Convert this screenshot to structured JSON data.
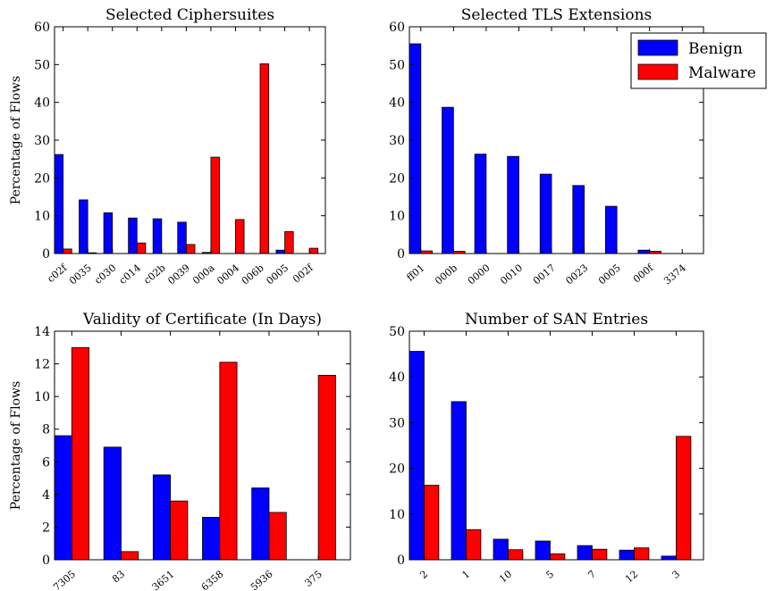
{
  "colors": {
    "benign": "#0000ff",
    "malware": "#ff0000"
  },
  "legend": {
    "benign_label": "Benign",
    "malware_label": "Malware",
    "placement": "upper-right"
  },
  "chart_data": [
    {
      "type": "bar",
      "title": "Selected Ciphersuites",
      "ylabel": "Percentage of Flows",
      "xlabel": "",
      "ylim": [
        0,
        60
      ],
      "yticks": [
        0,
        10,
        20,
        30,
        40,
        50,
        60
      ],
      "categories": [
        "c02f",
        "0035",
        "c030",
        "c014",
        "c02b",
        "0039",
        "000a",
        "0004",
        "006b",
        "0005",
        "002f"
      ],
      "series": [
        {
          "name": "Benign",
          "values": [
            26.2,
            14.2,
            10.8,
            9.4,
            9.2,
            8.3,
            0.3,
            0,
            0,
            0.9,
            0
          ]
        },
        {
          "name": "Malware",
          "values": [
            1.2,
            0.2,
            0,
            2.8,
            0,
            2.4,
            25.5,
            9.0,
            50.2,
            5.8,
            1.4
          ]
        }
      ]
    },
    {
      "type": "bar",
      "title": "Selected TLS Extensions",
      "ylabel": "",
      "xlabel": "",
      "ylim": [
        0,
        60
      ],
      "yticks": [
        0,
        10,
        20,
        30,
        40,
        50,
        60
      ],
      "categories": [
        "ff01",
        "000b",
        "0000",
        "0010",
        "0017",
        "0023",
        "0005",
        "000f",
        "3374"
      ],
      "series": [
        {
          "name": "Benign",
          "values": [
            55.5,
            38.7,
            26.3,
            25.7,
            21.0,
            18.0,
            12.5,
            0.9,
            0
          ]
        },
        {
          "name": "Malware",
          "values": [
            0.7,
            0.6,
            0,
            0,
            0,
            0,
            0,
            0.6,
            0
          ]
        }
      ]
    },
    {
      "type": "bar",
      "title": "Validity of Certificate (In Days)",
      "ylabel": "Percentage of Flows",
      "xlabel": "",
      "ylim": [
        0,
        14
      ],
      "yticks": [
        0,
        2,
        4,
        6,
        8,
        10,
        12,
        14
      ],
      "categories": [
        "7305",
        "83",
        "3651",
        "6358",
        "5936",
        "375"
      ],
      "series": [
        {
          "name": "Benign",
          "values": [
            7.6,
            6.9,
            5.2,
            2.6,
            4.4,
            0
          ]
        },
        {
          "name": "Malware",
          "values": [
            13.0,
            0.5,
            3.6,
            12.1,
            2.9,
            11.3
          ]
        }
      ]
    },
    {
      "type": "bar",
      "title": "Number of SAN Entries",
      "ylabel": "",
      "xlabel": "",
      "ylim": [
        0,
        50
      ],
      "yticks": [
        0,
        10,
        20,
        30,
        40,
        50
      ],
      "categories": [
        "2",
        "1",
        "10",
        "5",
        "7",
        "12",
        "3"
      ],
      "series": [
        {
          "name": "Benign",
          "values": [
            45.6,
            34.6,
            4.5,
            4.1,
            3.1,
            2.1,
            0.8
          ]
        },
        {
          "name": "Malware",
          "values": [
            16.3,
            6.6,
            2.2,
            1.3,
            2.3,
            2.6,
            27.0
          ]
        }
      ]
    }
  ]
}
